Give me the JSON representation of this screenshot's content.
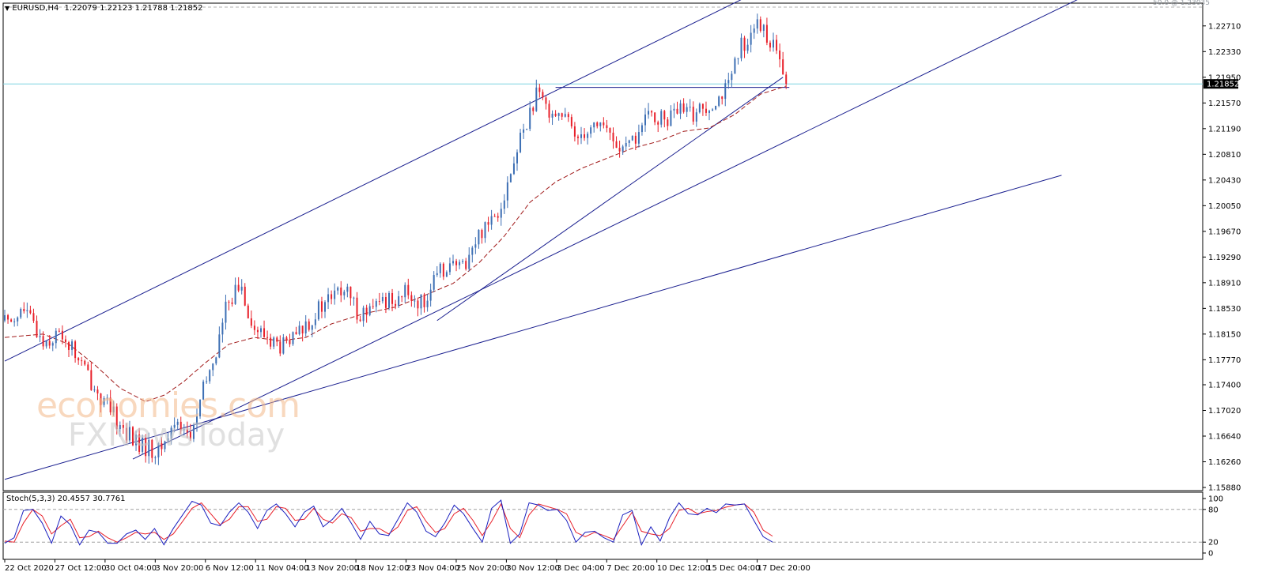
{
  "header": {
    "symbol": "EURUSD,H4",
    "ohlc": "1.22079 1.22123 1.21788 1.21852",
    "fib_label": "50.0 @ 1.23035"
  },
  "watermark": {
    "line1": "economies.com",
    "line2": "FXNewsToday"
  },
  "colors": {
    "bull": "#3d6fb4",
    "bear": "#e8202a",
    "trendline": "#1a1f8f",
    "ma": "#a11a1a",
    "stoch_main": "#1a1fbf",
    "stoch_signal": "#e8202a",
    "current_price_line": "#7fd3e0",
    "price_tag_bg": "#000000"
  },
  "chart_data": [
    {
      "type": "candlestick",
      "symbol": "EURUSD",
      "timeframe": "H4",
      "current_price": "1.21852",
      "ylim": [
        1.1588,
        1.23
      ],
      "y_ticks": [
        "1.22710",
        "1.22330",
        "1.21950",
        "1.21570",
        "1.21190",
        "1.20810",
        "1.20430",
        "1.20050",
        "1.19670",
        "1.19290",
        "1.18910",
        "1.18530",
        "1.18150",
        "1.17770",
        "1.17400",
        "1.17020",
        "1.16640",
        "1.16260",
        "1.15880"
      ],
      "x_ticks": [
        "22 Oct 2020",
        "27 Oct 12:00",
        "30 Oct 04:00",
        "3 Nov 20:00",
        "6 Nov 12:00",
        "11 Nov 04:00",
        "13 Nov 20:00",
        "18 Nov 12:00",
        "23 Nov 04:00",
        "25 Nov 20:00",
        "30 Nov 12:00",
        "3 Dec 04:00",
        "7 Dec 20:00",
        "10 Dec 12:00",
        "15 Dec 04:00",
        "17 Dec 20:00"
      ],
      "close_path": [
        [
          0,
          1.1835
        ],
        [
          6,
          1.185
        ],
        [
          12,
          1.1805
        ],
        [
          18,
          1.1815
        ],
        [
          24,
          1.177
        ],
        [
          30,
          1.172
        ],
        [
          36,
          1.168
        ],
        [
          42,
          1.165
        ],
        [
          48,
          1.164
        ],
        [
          54,
          1.169
        ],
        [
          58,
          1.166
        ],
        [
          62,
          1.173
        ],
        [
          66,
          1.179
        ],
        [
          70,
          1.187
        ],
        [
          74,
          1.1885
        ],
        [
          78,
          1.182
        ],
        [
          82,
          1.181
        ],
        [
          86,
          1.1795
        ],
        [
          90,
          1.1805
        ],
        [
          94,
          1.183
        ],
        [
          98,
          1.185
        ],
        [
          102,
          1.187
        ],
        [
          106,
          1.188
        ],
        [
          110,
          1.185
        ],
        [
          114,
          1.1845
        ],
        [
          118,
          1.1865
        ],
        [
          122,
          1.187
        ],
        [
          126,
          1.1875
        ],
        [
          130,
          1.186
        ],
        [
          134,
          1.189
        ],
        [
          138,
          1.192
        ],
        [
          142,
          1.191
        ],
        [
          146,
          1.194
        ],
        [
          150,
          1.198
        ],
        [
          154,
          1.2
        ],
        [
          158,
          1.205
        ],
        [
          162,
          1.212
        ],
        [
          166,
          1.2165
        ],
        [
          170,
          1.215
        ],
        [
          174,
          1.214
        ],
        [
          178,
          1.211
        ],
        [
          182,
          1.212
        ],
        [
          186,
          1.213
        ],
        [
          190,
          1.21
        ],
        [
          194,
          1.2085
        ],
        [
          198,
          1.2115
        ],
        [
          202,
          1.214
        ],
        [
          206,
          1.213
        ],
        [
          210,
          1.2145
        ],
        [
          214,
          1.214
        ],
        [
          218,
          1.215
        ],
        [
          222,
          1.2165
        ],
        [
          226,
          1.218
        ],
        [
          230,
          1.224
        ],
        [
          234,
          1.227
        ],
        [
          238,
          1.226
        ],
        [
          242,
          1.2215
        ],
        [
          244,
          1.21852
        ]
      ],
      "ma_path": [
        [
          0,
          1.181
        ],
        [
          12,
          1.1815
        ],
        [
          20,
          1.18
        ],
        [
          28,
          1.177
        ],
        [
          36,
          1.1735
        ],
        [
          44,
          1.1715
        ],
        [
          50,
          1.1725
        ],
        [
          56,
          1.1745
        ],
        [
          62,
          1.177
        ],
        [
          70,
          1.18
        ],
        [
          78,
          1.181
        ],
        [
          86,
          1.1805
        ],
        [
          94,
          1.181
        ],
        [
          102,
          1.183
        ],
        [
          112,
          1.1845
        ],
        [
          122,
          1.1855
        ],
        [
          130,
          1.187
        ],
        [
          140,
          1.189
        ],
        [
          148,
          1.192
        ],
        [
          156,
          1.196
        ],
        [
          164,
          1.201
        ],
        [
          172,
          1.204
        ],
        [
          180,
          1.206
        ],
        [
          188,
          1.2075
        ],
        [
          196,
          1.209
        ],
        [
          204,
          1.21
        ],
        [
          212,
          1.2115
        ],
        [
          220,
          1.212
        ],
        [
          228,
          1.214
        ],
        [
          236,
          1.217
        ],
        [
          244,
          1.2182
        ]
      ],
      "trendlines": [
        {
          "from": [
            0,
            1.1775
          ],
          "to": [
            230,
            1.231
          ]
        },
        {
          "from": [
            0,
            1.16
          ],
          "to": [
            330,
            1.205
          ]
        },
        {
          "from": [
            40,
            1.163
          ],
          "to": [
            335,
            1.231
          ]
        },
        {
          "from": [
            135,
            1.1835
          ],
          "to": [
            243,
            1.2195
          ]
        },
        {
          "from": [
            172,
            1.218
          ],
          "to": [
            245,
            1.218
          ]
        }
      ]
    },
    {
      "type": "line",
      "indicator": "Stoch(5,3,3)",
      "values_label": "Stoch(5,3,3) 20.4557 30.7761",
      "ylim": [
        0,
        100
      ],
      "y_ticks": [
        "100",
        "80",
        "20",
        "0"
      ],
      "levels": [
        80,
        20
      ],
      "series": [
        {
          "name": "main",
          "value": 20.4557,
          "points": [
            [
              0,
              18
            ],
            [
              3,
              28
            ],
            [
              6,
              78
            ],
            [
              9,
              80
            ],
            [
              12,
              55
            ],
            [
              15,
              18
            ],
            [
              18,
              68
            ],
            [
              21,
              52
            ],
            [
              24,
              15
            ],
            [
              27,
              42
            ],
            [
              30,
              38
            ],
            [
              33,
              18
            ],
            [
              36,
              18
            ],
            [
              39,
              35
            ],
            [
              42,
              42
            ],
            [
              45,
              25
            ],
            [
              48,
              45
            ],
            [
              51,
              15
            ],
            [
              54,
              45
            ],
            [
              57,
              70
            ],
            [
              60,
              95
            ],
            [
              63,
              88
            ],
            [
              66,
              55
            ],
            [
              69,
              50
            ],
            [
              72,
              75
            ],
            [
              75,
              92
            ],
            [
              78,
              75
            ],
            [
              81,
              45
            ],
            [
              84,
              78
            ],
            [
              87,
              90
            ],
            [
              90,
              72
            ],
            [
              93,
              48
            ],
            [
              96,
              75
            ],
            [
              99,
              86
            ],
            [
              102,
              48
            ],
            [
              105,
              62
            ],
            [
              108,
              82
            ],
            [
              111,
              55
            ],
            [
              114,
              25
            ],
            [
              117,
              58
            ],
            [
              120,
              35
            ],
            [
              123,
              32
            ],
            [
              126,
              62
            ],
            [
              129,
              92
            ],
            [
              132,
              75
            ],
            [
              135,
              40
            ],
            [
              138,
              30
            ],
            [
              141,
              55
            ],
            [
              144,
              88
            ],
            [
              147,
              72
            ],
            [
              150,
              45
            ],
            [
              153,
              20
            ],
            [
              156,
              82
            ],
            [
              159,
              97
            ],
            [
              162,
              18
            ],
            [
              165,
              35
            ],
            [
              168,
              92
            ],
            [
              171,
              88
            ],
            [
              174,
              78
            ],
            [
              177,
              80
            ],
            [
              180,
              60
            ],
            [
              183,
              20
            ],
            [
              186,
              38
            ],
            [
              189,
              40
            ],
            [
              192,
              28
            ],
            [
              195,
              20
            ],
            [
              198,
              70
            ],
            [
              201,
              78
            ],
            [
              204,
              15
            ],
            [
              207,
              48
            ],
            [
              210,
              22
            ],
            [
              213,
              65
            ],
            [
              216,
              92
            ],
            [
              219,
              72
            ],
            [
              222,
              70
            ],
            [
              225,
              82
            ],
            [
              228,
              74
            ],
            [
              231,
              90
            ],
            [
              234,
              88
            ],
            [
              237,
              90
            ],
            [
              240,
              60
            ],
            [
              243,
              30
            ],
            [
              246,
              20
            ]
          ]
        },
        {
          "name": "signal",
          "value": 30.7761,
          "points": [
            [
              0,
              22
            ],
            [
              3,
              20
            ],
            [
              6,
              55
            ],
            [
              9,
              80
            ],
            [
              12,
              68
            ],
            [
              15,
              35
            ],
            [
              18,
              50
            ],
            [
              21,
              62
            ],
            [
              24,
              28
            ],
            [
              27,
              30
            ],
            [
              30,
              40
            ],
            [
              33,
              28
            ],
            [
              36,
              20
            ],
            [
              39,
              28
            ],
            [
              42,
              38
            ],
            [
              45,
              35
            ],
            [
              48,
              38
            ],
            [
              51,
              25
            ],
            [
              54,
              35
            ],
            [
              57,
              58
            ],
            [
              60,
              82
            ],
            [
              63,
              92
            ],
            [
              66,
              72
            ],
            [
              69,
              52
            ],
            [
              72,
              62
            ],
            [
              75,
              85
            ],
            [
              78,
              85
            ],
            [
              81,
              58
            ],
            [
              84,
              62
            ],
            [
              87,
              85
            ],
            [
              90,
              82
            ],
            [
              93,
              60
            ],
            [
              96,
              62
            ],
            [
              99,
              82
            ],
            [
              102,
              62
            ],
            [
              105,
              55
            ],
            [
              108,
              72
            ],
            [
              111,
              65
            ],
            [
              114,
              40
            ],
            [
              117,
              45
            ],
            [
              120,
              45
            ],
            [
              123,
              35
            ],
            [
              126,
              48
            ],
            [
              129,
              78
            ],
            [
              132,
              85
            ],
            [
              135,
              58
            ],
            [
              138,
              38
            ],
            [
              141,
              45
            ],
            [
              144,
              72
            ],
            [
              147,
              82
            ],
            [
              150,
              60
            ],
            [
              153,
              32
            ],
            [
              156,
              58
            ],
            [
              159,
              90
            ],
            [
              162,
              45
            ],
            [
              165,
              28
            ],
            [
              168,
              70
            ],
            [
              171,
              90
            ],
            [
              174,
              85
            ],
            [
              177,
              80
            ],
            [
              180,
              72
            ],
            [
              183,
              38
            ],
            [
              186,
              30
            ],
            [
              189,
              38
            ],
            [
              192,
              32
            ],
            [
              195,
              25
            ],
            [
              198,
              50
            ],
            [
              201,
              75
            ],
            [
              204,
              40
            ],
            [
              207,
              35
            ],
            [
              210,
              32
            ],
            [
              213,
              45
            ],
            [
              216,
              78
            ],
            [
              219,
              82
            ],
            [
              222,
              72
            ],
            [
              225,
              76
            ],
            [
              228,
              78
            ],
            [
              231,
              84
            ],
            [
              234,
              88
            ],
            [
              237,
              90
            ],
            [
              240,
              75
            ],
            [
              243,
              42
            ],
            [
              246,
              31
            ]
          ]
        }
      ]
    }
  ]
}
